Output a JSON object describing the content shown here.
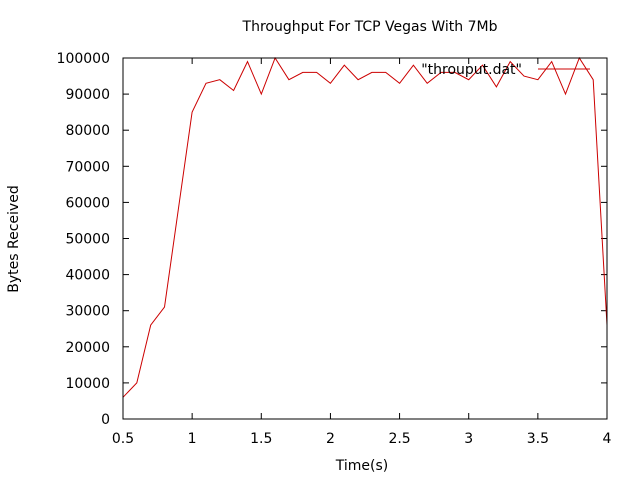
{
  "chart_data": {
    "type": "line",
    "title": "Throughput For TCP Vegas With 7Mb",
    "xlabel": "Time(s)",
    "ylabel": "Bytes Received",
    "xlim": [
      0.5,
      4
    ],
    "ylim": [
      0,
      100000
    ],
    "xticks": [
      "0.5",
      "1",
      "1.5",
      "2",
      "2.5",
      "3",
      "3.5",
      "4"
    ],
    "yticks": [
      "0",
      "10000",
      "20000",
      "30000",
      "40000",
      "50000",
      "60000",
      "70000",
      "80000",
      "90000",
      "100000"
    ],
    "grid": false,
    "legend": "top-right",
    "series": [
      {
        "name": "\"throuput.dat\"",
        "color": "#cc0000",
        "x": [
          0.5,
          0.6,
          0.7,
          0.8,
          0.9,
          1.0,
          1.1,
          1.2,
          1.3,
          1.4,
          1.5,
          1.6,
          1.7,
          1.8,
          1.9,
          2.0,
          2.1,
          2.2,
          2.3,
          2.4,
          2.5,
          2.6,
          2.7,
          2.8,
          2.9,
          3.0,
          3.1,
          3.2,
          3.3,
          3.4,
          3.5,
          3.6,
          3.7,
          3.8,
          3.9,
          4.0
        ],
        "y": [
          6000,
          10000,
          26000,
          31000,
          58000,
          85000,
          93000,
          94000,
          91000,
          99000,
          90000,
          100000,
          94000,
          96000,
          96000,
          93000,
          98000,
          94000,
          96000,
          96000,
          93000,
          98000,
          93000,
          96000,
          96000,
          94000,
          98000,
          92000,
          99000,
          95000,
          94000,
          99000,
          90000,
          100000,
          94000,
          26000
        ]
      }
    ]
  }
}
